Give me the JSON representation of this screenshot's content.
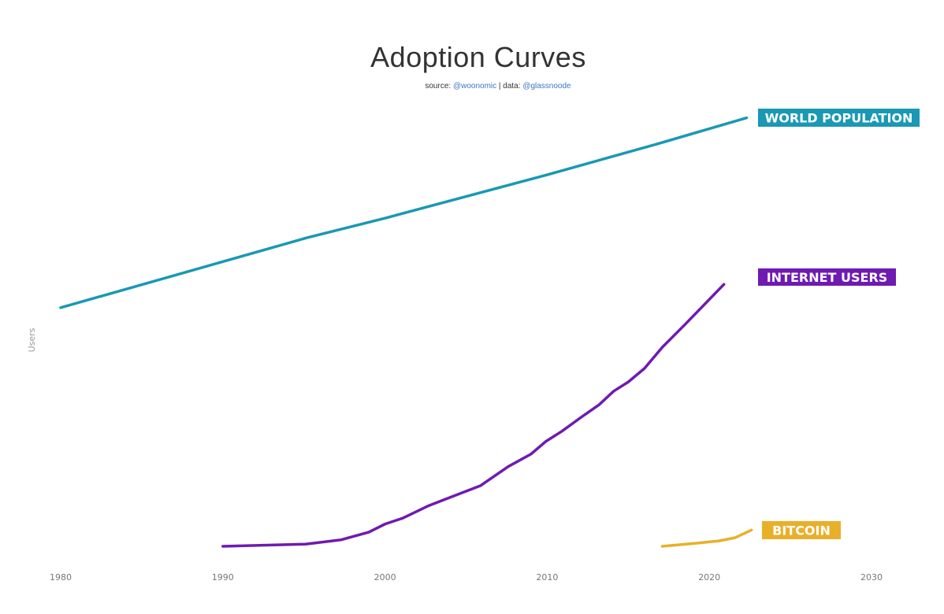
{
  "chart_data": {
    "type": "line",
    "title": "Adoption Curves",
    "subtitle": {
      "prefix": "source: ",
      "source": "@woonomic",
      "separator": " | data: ",
      "data": "@glassnoode"
    },
    "xlabel": "",
    "ylabel": "Users",
    "xlim": [
      1980,
      2030
    ],
    "x_ticks": [
      "1980",
      "1990",
      "2000",
      "2010",
      "2020",
      "2030"
    ],
    "y_units_note_hidden": false,
    "ylim": [
      0,
      8.3
    ],
    "grid": false,
    "legend": "direct labels at line ends (right)",
    "series": [
      {
        "name": "WORLD POPULATION",
        "color": "#1a98b4",
        "x": [
          1980,
          1995.2,
          2000,
          2010,
          2016.8,
          2022.3
        ],
        "y": [
          4.4,
          5.69,
          6.05,
          6.85,
          7.42,
          7.9
        ]
      },
      {
        "name": "INTERNET USERS",
        "color": "#6f1ab1",
        "x": [
          1990,
          1995.1,
          1997.3,
          1999,
          2000,
          2001.1,
          2002.7,
          2005.9,
          2007.6,
          2009,
          2009.9,
          2010.9,
          2012.1,
          2013.2,
          2014.1,
          2015,
          2016,
          2017.1,
          2018.5,
          2020.9
        ],
        "y": [
          0,
          0.04,
          0.12,
          0.26,
          0.41,
          0.52,
          0.75,
          1.12,
          1.47,
          1.7,
          1.93,
          2.12,
          2.38,
          2.61,
          2.86,
          3.03,
          3.28,
          3.67,
          4.09,
          4.83
        ]
      },
      {
        "name": "BITCOIN",
        "color": "#e8b02a",
        "x": [
          2017.1,
          2019.3,
          2020.6,
          2021.6,
          2022.6
        ],
        "y": [
          0.0,
          0.06,
          0.1,
          0.16,
          0.3
        ]
      }
    ]
  }
}
